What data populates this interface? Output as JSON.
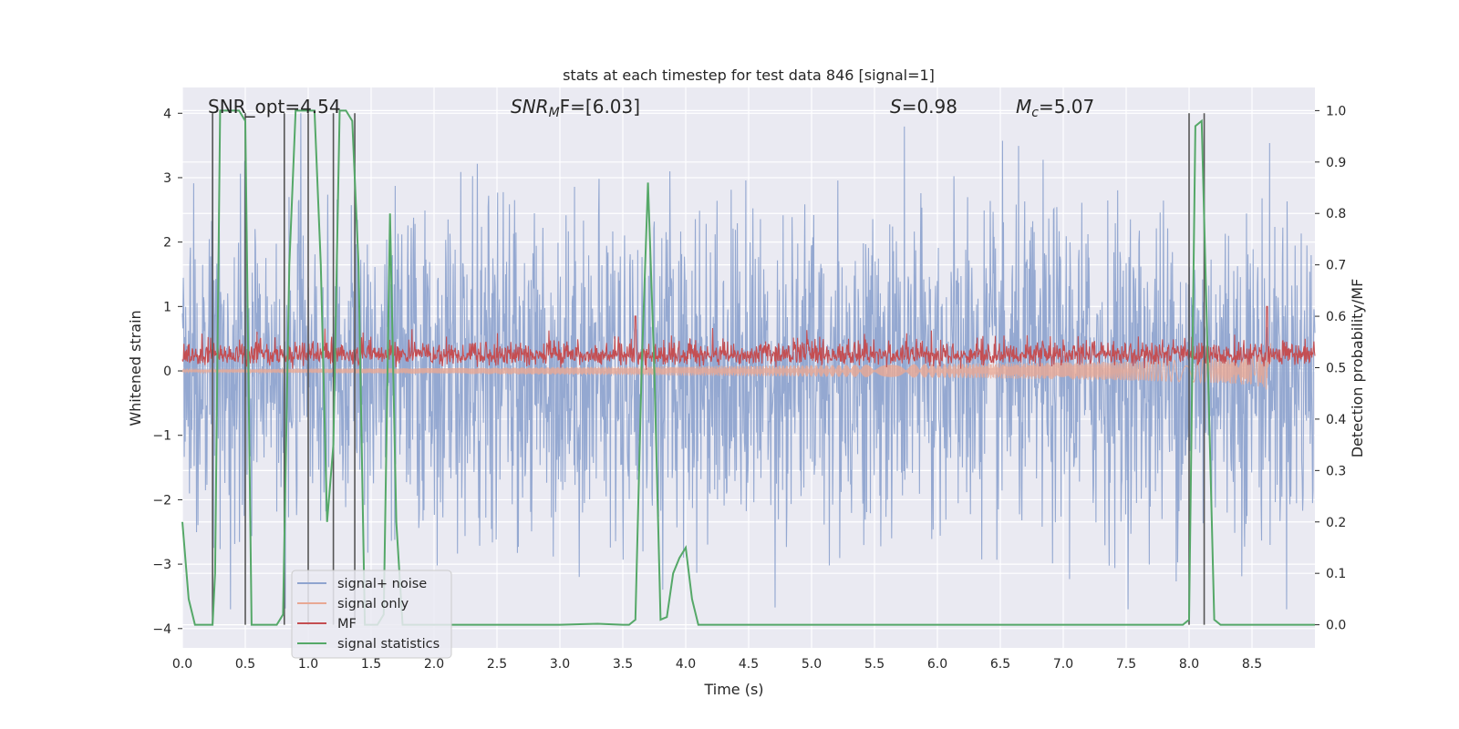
{
  "chart_data": {
    "type": "line",
    "title": "stats at each timestep for test data 846 [signal=1]",
    "xlabel": "Time (s)",
    "ylabel": "Whitened strain",
    "ylabel_right": "Detection probability/MF",
    "xlim": [
      0.0,
      9.0
    ],
    "ylim": [
      -4.3,
      4.4
    ],
    "ylim_right": [
      -0.045,
      1.045
    ],
    "xticks": [
      "0.0",
      "0.5",
      "1.0",
      "1.5",
      "2.0",
      "2.5",
      "3.0",
      "3.5",
      "4.0",
      "4.5",
      "5.0",
      "5.5",
      "6.0",
      "6.5",
      "7.0",
      "7.5",
      "8.0",
      "8.5"
    ],
    "xtick_values": [
      0,
      0.5,
      1,
      1.5,
      2,
      2.5,
      3,
      3.5,
      4,
      4.5,
      5,
      5.5,
      6,
      6.5,
      7,
      7.5,
      8,
      8.5
    ],
    "yticks": [
      "4",
      "3",
      "2",
      "1",
      "0",
      "−1",
      "−2",
      "−3",
      "−4"
    ],
    "ytick_values": [
      4,
      3,
      2,
      1,
      0,
      -1,
      -2,
      -3,
      -4
    ],
    "yticks_right": [
      "1.0",
      "0.9",
      "0.8",
      "0.7",
      "0.6",
      "0.5",
      "0.4",
      "0.3",
      "0.2",
      "0.1",
      "0.0"
    ],
    "ytick_right_values": [
      1.0,
      0.9,
      0.8,
      0.7,
      0.6,
      0.5,
      0.4,
      0.3,
      0.2,
      0.1,
      0.0
    ],
    "grid": true,
    "annotations": {
      "snr_opt": "SNR_opt=4.54",
      "snr_mf_name": "SNR",
      "snr_mf_sub": "M",
      "snr_mf_tail": "F=[6.03]",
      "s_name": "S",
      "s_val": "=0.98",
      "mc_name": "M",
      "mc_sub": "c",
      "mc_val": "=5.07"
    },
    "legend": {
      "position": "lower-left",
      "entries": [
        {
          "label": "signal+ noise",
          "color": "#8fa4cf"
        },
        {
          "label": "signal only",
          "color": "#e8a894"
        },
        {
          "label": "MF",
          "color": "#c44e52"
        },
        {
          "label": "signal statistics",
          "color": "#55a868"
        }
      ]
    },
    "series": [
      {
        "name": "signal+ noise",
        "color": "#8fa4cf",
        "noise_envelope_typical": 2.2,
        "noise_peak": 4.0
      },
      {
        "name": "signal only",
        "color": "#e8a894",
        "chirp_end_time": 8.65,
        "final_amplitude": 0.45
      },
      {
        "name": "MF",
        "color": "#c44e52",
        "mean": 0.2,
        "spread": 0.25,
        "spikes": [
          [
            3.6,
            0.85
          ],
          [
            8.62,
            1.0
          ]
        ]
      },
      {
        "name": "signal statistics",
        "color": "#55a868",
        "axis": "right",
        "x": [
          0.0,
          0.05,
          0.1,
          0.15,
          0.2,
          0.24,
          0.26,
          0.3,
          0.35,
          0.4,
          0.45,
          0.5,
          0.55,
          0.6,
          0.7,
          0.75,
          0.8,
          0.85,
          0.9,
          0.95,
          1.0,
          1.05,
          1.1,
          1.15,
          1.2,
          1.25,
          1.3,
          1.35,
          1.4,
          1.45,
          1.5,
          1.55,
          1.6,
          1.65,
          1.7,
          1.75,
          1.8,
          1.9,
          2.0,
          2.5,
          3.0,
          3.3,
          3.5,
          3.55,
          3.6,
          3.65,
          3.7,
          3.75,
          3.8,
          3.85,
          3.9,
          3.95,
          4.0,
          4.05,
          4.1,
          4.2,
          5.0,
          6.0,
          7.0,
          7.5,
          7.95,
          8.0,
          8.05,
          8.1,
          8.15,
          8.2,
          8.25,
          8.5,
          9.0
        ],
        "values": [
          0.2,
          0.05,
          0.0,
          0.0,
          0.0,
          0.0,
          0.1,
          1.0,
          1.0,
          1.0,
          1.0,
          0.98,
          0.0,
          0.0,
          0.0,
          0.0,
          0.02,
          0.7,
          1.0,
          1.0,
          1.0,
          1.0,
          0.7,
          0.2,
          0.35,
          1.0,
          1.0,
          0.98,
          0.7,
          0.0,
          0.0,
          0.0,
          0.02,
          0.8,
          0.2,
          0.0,
          0.0,
          0.0,
          0.0,
          0.0,
          0.0,
          0.002,
          0.0,
          0.0,
          0.01,
          0.5,
          0.86,
          0.5,
          0.01,
          0.015,
          0.1,
          0.13,
          0.15,
          0.05,
          0.0,
          0.0,
          0.0,
          0.0,
          0.0,
          0.0,
          0.0,
          0.01,
          0.97,
          0.98,
          0.5,
          0.01,
          0.0,
          0.0,
          0.0
        ]
      }
    ],
    "vertical_markers": [
      0.24,
      0.5,
      0.81,
      1.0,
      1.2,
      1.37,
      8.0,
      8.12
    ]
  }
}
